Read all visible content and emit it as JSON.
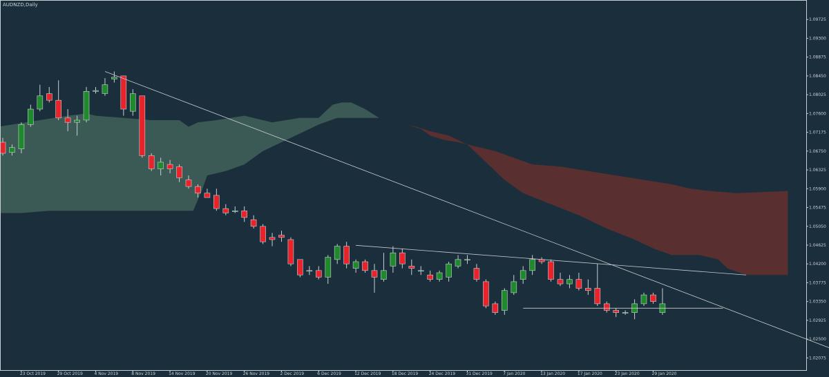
{
  "chart_data": {
    "type": "candlestick",
    "title": "AUDNZD,Daily",
    "colors": {
      "background": "#1b2e3c",
      "bull_body": "#1f8a2b",
      "bear_body": "#e8232a",
      "wick": "#c8d0d6",
      "cloud_bull": "#3c5a55",
      "cloud_bear": "#5a2f30",
      "trendline": "#c9cdd2",
      "axis_text": "#c8d0d6",
      "frame": "#c8d0d6"
    },
    "y_ticks": [
      "1.09725",
      "1.09300",
      "1.08875",
      "1.08450",
      "1.08025",
      "1.07600",
      "1.07175",
      "1.06750",
      "1.06325",
      "1.05900",
      "1.05475",
      "1.05050",
      "1.04625",
      "1.04200",
      "1.03775",
      "1.03350",
      "1.02925",
      "1.02500",
      "1.02075"
    ],
    "ylim": [
      1.018,
      1.1015
    ],
    "x_labels": [
      {
        "label": "23 Oct 2019",
        "index": 2
      },
      {
        "label": "29 Oct 2019",
        "index": 6
      },
      {
        "label": "4 Nov 2019",
        "index": 10
      },
      {
        "label": "8 Nov 2019",
        "index": 14
      },
      {
        "label": "14 Nov 2019",
        "index": 18
      },
      {
        "label": "20 Nov 2019",
        "index": 22
      },
      {
        "label": "26 Nov 2019",
        "index": 26
      },
      {
        "label": "2 Dec 2019",
        "index": 30
      },
      {
        "label": "6 Dec 2019",
        "index": 34
      },
      {
        "label": "12 Dec 2019",
        "index": 38
      },
      {
        "label": "18 Dec 2019",
        "index": 42
      },
      {
        "label": "24 Dec 2019",
        "index": 46
      },
      {
        "label": "31 Dec 2019",
        "index": 50
      },
      {
        "label": "7 Jan 2020",
        "index": 54
      },
      {
        "label": "13 Jan 2020",
        "index": 58
      },
      {
        "label": "17 Jan 2020",
        "index": 62
      },
      {
        "label": "23 Jan 2020",
        "index": 66
      },
      {
        "label": "29 Jan 2020",
        "index": 70
      }
    ],
    "candles": [
      {
        "o": 1.0695,
        "h": 1.0705,
        "l": 1.0665,
        "c": 1.067
      },
      {
        "o": 1.0672,
        "h": 1.069,
        "l": 1.0665,
        "c": 1.0683
      },
      {
        "o": 1.068,
        "h": 1.074,
        "l": 1.067,
        "c": 1.0735
      },
      {
        "o": 1.0735,
        "h": 1.078,
        "l": 1.073,
        "c": 1.077
      },
      {
        "o": 1.077,
        "h": 1.0825,
        "l": 1.0765,
        "c": 1.08
      },
      {
        "o": 1.0805,
        "h": 1.082,
        "l": 1.0785,
        "c": 1.079
      },
      {
        "o": 1.079,
        "h": 1.0835,
        "l": 1.0745,
        "c": 1.075
      },
      {
        "o": 1.075,
        "h": 1.077,
        "l": 1.072,
        "c": 1.074
      },
      {
        "o": 1.074,
        "h": 1.0755,
        "l": 1.071,
        "c": 1.0745
      },
      {
        "o": 1.0745,
        "h": 1.082,
        "l": 1.074,
        "c": 1.081
      },
      {
        "o": 1.081,
        "h": 1.082,
        "l": 1.0805,
        "c": 1.0812
      },
      {
        "o": 1.0805,
        "h": 1.084,
        "l": 1.08,
        "c": 1.0825
      },
      {
        "o": 1.0838,
        "h": 1.0855,
        "l": 1.083,
        "c": 1.0842
      },
      {
        "o": 1.0845,
        "h": 1.0845,
        "l": 1.0755,
        "c": 1.077
      },
      {
        "o": 1.0765,
        "h": 1.0815,
        "l": 1.0755,
        "c": 1.0805
      },
      {
        "o": 1.08,
        "h": 1.08,
        "l": 1.066,
        "c": 1.0665
      },
      {
        "o": 1.0665,
        "h": 1.067,
        "l": 1.063,
        "c": 1.0635
      },
      {
        "o": 1.0635,
        "h": 1.066,
        "l": 1.062,
        "c": 1.065
      },
      {
        "o": 1.0645,
        "h": 1.0655,
        "l": 1.0625,
        "c": 1.0635
      },
      {
        "o": 1.064,
        "h": 1.0645,
        "l": 1.0605,
        "c": 1.0615
      },
      {
        "o": 1.061,
        "h": 1.062,
        "l": 1.059,
        "c": 1.0595
      },
      {
        "o": 1.0595,
        "h": 1.06,
        "l": 1.057,
        "c": 1.058
      },
      {
        "o": 1.058,
        "h": 1.059,
        "l": 1.057,
        "c": 1.057
      },
      {
        "o": 1.0575,
        "h": 1.059,
        "l": 1.054,
        "c": 1.0545
      },
      {
        "o": 1.0545,
        "h": 1.0555,
        "l": 1.053,
        "c": 1.0535
      },
      {
        "o": 1.054,
        "h": 1.055,
        "l": 1.0535,
        "c": 1.054
      },
      {
        "o": 1.054,
        "h": 1.055,
        "l": 1.0515,
        "c": 1.0525
      },
      {
        "o": 1.052,
        "h": 1.053,
        "l": 1.05,
        "c": 1.0505
      },
      {
        "o": 1.0505,
        "h": 1.051,
        "l": 1.0465,
        "c": 1.047
      },
      {
        "o": 1.048,
        "h": 1.049,
        "l": 1.046,
        "c": 1.0475
      },
      {
        "o": 1.0485,
        "h": 1.0495,
        "l": 1.047,
        "c": 1.048
      },
      {
        "o": 1.0475,
        "h": 1.048,
        "l": 1.0415,
        "c": 1.042
      },
      {
        "o": 1.043,
        "h": 1.043,
        "l": 1.039,
        "c": 1.0395
      },
      {
        "o": 1.0405,
        "h": 1.0415,
        "l": 1.0395,
        "c": 1.0405
      },
      {
        "o": 1.0405,
        "h": 1.0415,
        "l": 1.0385,
        "c": 1.039
      },
      {
        "o": 1.039,
        "h": 1.044,
        "l": 1.0375,
        "c": 1.0435
      },
      {
        "o": 1.043,
        "h": 1.0465,
        "l": 1.042,
        "c": 1.046
      },
      {
        "o": 1.046,
        "h": 1.047,
        "l": 1.041,
        "c": 1.042
      },
      {
        "o": 1.041,
        "h": 1.043,
        "l": 1.04,
        "c": 1.0425
      },
      {
        "o": 1.0425,
        "h": 1.043,
        "l": 1.04,
        "c": 1.0405
      },
      {
        "o": 1.0405,
        "h": 1.042,
        "l": 1.0355,
        "c": 1.039
      },
      {
        "o": 1.0385,
        "h": 1.0445,
        "l": 1.038,
        "c": 1.0405
      },
      {
        "o": 1.0415,
        "h": 1.046,
        "l": 1.04,
        "c": 1.0445
      },
      {
        "o": 1.0445,
        "h": 1.0455,
        "l": 1.041,
        "c": 1.042
      },
      {
        "o": 1.0415,
        "h": 1.043,
        "l": 1.0395,
        "c": 1.041
      },
      {
        "o": 1.0405,
        "h": 1.0415,
        "l": 1.0395,
        "c": 1.0405
      },
      {
        "o": 1.0395,
        "h": 1.0405,
        "l": 1.038,
        "c": 1.0385
      },
      {
        "o": 1.0385,
        "h": 1.0405,
        "l": 1.038,
        "c": 1.04
      },
      {
        "o": 1.039,
        "h": 1.0425,
        "l": 1.038,
        "c": 1.042
      },
      {
        "o": 1.0415,
        "h": 1.044,
        "l": 1.041,
        "c": 1.043
      },
      {
        "o": 1.043,
        "h": 1.044,
        "l": 1.042,
        "c": 1.043
      },
      {
        "o": 1.041,
        "h": 1.042,
        "l": 1.038,
        "c": 1.0385
      },
      {
        "o": 1.038,
        "h": 1.0385,
        "l": 1.032,
        "c": 1.0325
      },
      {
        "o": 1.033,
        "h": 1.0335,
        "l": 1.0305,
        "c": 1.031
      },
      {
        "o": 1.0315,
        "h": 1.0365,
        "l": 1.0305,
        "c": 1.036
      },
      {
        "o": 1.0355,
        "h": 1.0395,
        "l": 1.035,
        "c": 1.038
      },
      {
        "o": 1.0385,
        "h": 1.0415,
        "l": 1.0375,
        "c": 1.0405
      },
      {
        "o": 1.0405,
        "h": 1.044,
        "l": 1.0395,
        "c": 1.043
      },
      {
        "o": 1.043,
        "h": 1.0435,
        "l": 1.042,
        "c": 1.0425
      },
      {
        "o": 1.0425,
        "h": 1.043,
        "l": 1.038,
        "c": 1.0385
      },
      {
        "o": 1.0385,
        "h": 1.04,
        "l": 1.037,
        "c": 1.0375
      },
      {
        "o": 1.0375,
        "h": 1.0395,
        "l": 1.0365,
        "c": 1.0385
      },
      {
        "o": 1.0385,
        "h": 1.04,
        "l": 1.036,
        "c": 1.0365
      },
      {
        "o": 1.0365,
        "h": 1.0385,
        "l": 1.035,
        "c": 1.036
      },
      {
        "o": 1.0365,
        "h": 1.042,
        "l": 1.0325,
        "c": 1.033
      },
      {
        "o": 1.033,
        "h": 1.0335,
        "l": 1.031,
        "c": 1.0315
      },
      {
        "o": 1.0315,
        "h": 1.032,
        "l": 1.03,
        "c": 1.031
      },
      {
        "o": 1.031,
        "h": 1.0315,
        "l": 1.0305,
        "c": 1.031
      },
      {
        "o": 1.031,
        "h": 1.034,
        "l": 1.0295,
        "c": 1.033
      },
      {
        "o": 1.033,
        "h": 1.0355,
        "l": 1.0325,
        "c": 1.035
      },
      {
        "o": 1.035,
        "h": 1.0355,
        "l": 1.033,
        "c": 1.0335
      },
      {
        "o": 1.031,
        "h": 1.0365,
        "l": 1.0305,
        "c": 1.033
      }
    ],
    "cloud_upper": [
      [
        -0.5,
        1.073
      ],
      [
        4,
        1.0745
      ],
      [
        7,
        1.0755
      ],
      [
        9,
        1.076
      ],
      [
        10,
        1.0755
      ],
      [
        13,
        1.075
      ],
      [
        16,
        1.0745
      ],
      [
        19,
        1.0745
      ],
      [
        20,
        1.073
      ],
      [
        21,
        1.074
      ],
      [
        23,
        1.0745
      ],
      [
        26,
        1.0755
      ],
      [
        29,
        1.074
      ],
      [
        32,
        1.075
      ],
      [
        34,
        1.075
      ],
      [
        35.5,
        1.078
      ],
      [
        36.5,
        1.0785
      ],
      [
        37.5,
        1.0785
      ],
      [
        39,
        1.077
      ],
      [
        40.5,
        1.075
      ]
    ],
    "cloud_lower": [
      [
        40.5,
        1.075
      ],
      [
        38,
        1.075
      ],
      [
        36,
        1.075
      ],
      [
        34,
        1.0735
      ],
      [
        32,
        1.0715
      ],
      [
        30,
        1.0695
      ],
      [
        28,
        1.0675
      ],
      [
        26,
        1.0645
      ],
      [
        24,
        1.063
      ],
      [
        22,
        1.062
      ],
      [
        21.5,
        1.059
      ],
      [
        20.5,
        1.054
      ],
      [
        15,
        1.054
      ],
      [
        10,
        1.054
      ],
      [
        5,
        1.054
      ],
      [
        2,
        1.0535
      ],
      [
        -0.5,
        1.0535
      ]
    ],
    "red_cloud_upper": [
      [
        43.5,
        1.0735
      ],
      [
        45,
        1.0725
      ],
      [
        46,
        1.071
      ],
      [
        47.5,
        1.07
      ],
      [
        49,
        1.0695
      ],
      [
        51,
        1.0685
      ],
      [
        53,
        1.0675
      ],
      [
        55,
        1.066
      ],
      [
        57,
        1.0645
      ],
      [
        60,
        1.064
      ],
      [
        63,
        1.063
      ],
      [
        66,
        1.062
      ],
      [
        69,
        1.061
      ],
      [
        72,
        1.06
      ],
      [
        74,
        1.059
      ],
      [
        76,
        1.0585
      ],
      [
        79,
        1.058
      ],
      [
        84.5,
        1.0585
      ]
    ],
    "red_cloud_lower": [
      [
        84.5,
        1.0395
      ],
      [
        82,
        1.0395
      ],
      [
        80,
        1.0395
      ],
      [
        78,
        1.041
      ],
      [
        77,
        1.043
      ],
      [
        75,
        1.044
      ],
      [
        72,
        1.044
      ],
      [
        70,
        1.0455
      ],
      [
        68,
        1.0475
      ],
      [
        65,
        1.05
      ],
      [
        62,
        1.053
      ],
      [
        59,
        1.0555
      ],
      [
        56,
        1.058
      ],
      [
        54,
        1.061
      ],
      [
        52,
        1.065
      ],
      [
        50,
        1.069
      ],
      [
        48,
        1.071
      ],
      [
        46,
        1.072
      ],
      [
        44.5,
        1.073
      ],
      [
        43.5,
        1.0735
      ]
    ],
    "trendlines": [
      {
        "from": [
          11,
          1.0855
        ],
        "to": [
          89,
          1.023
        ]
      },
      {
        "from": [
          38,
          1.0462
        ],
        "to": [
          80,
          1.0395
        ]
      },
      {
        "from": [
          56,
          1.032
        ],
        "to": [
          77.5,
          1.032
        ]
      }
    ]
  }
}
